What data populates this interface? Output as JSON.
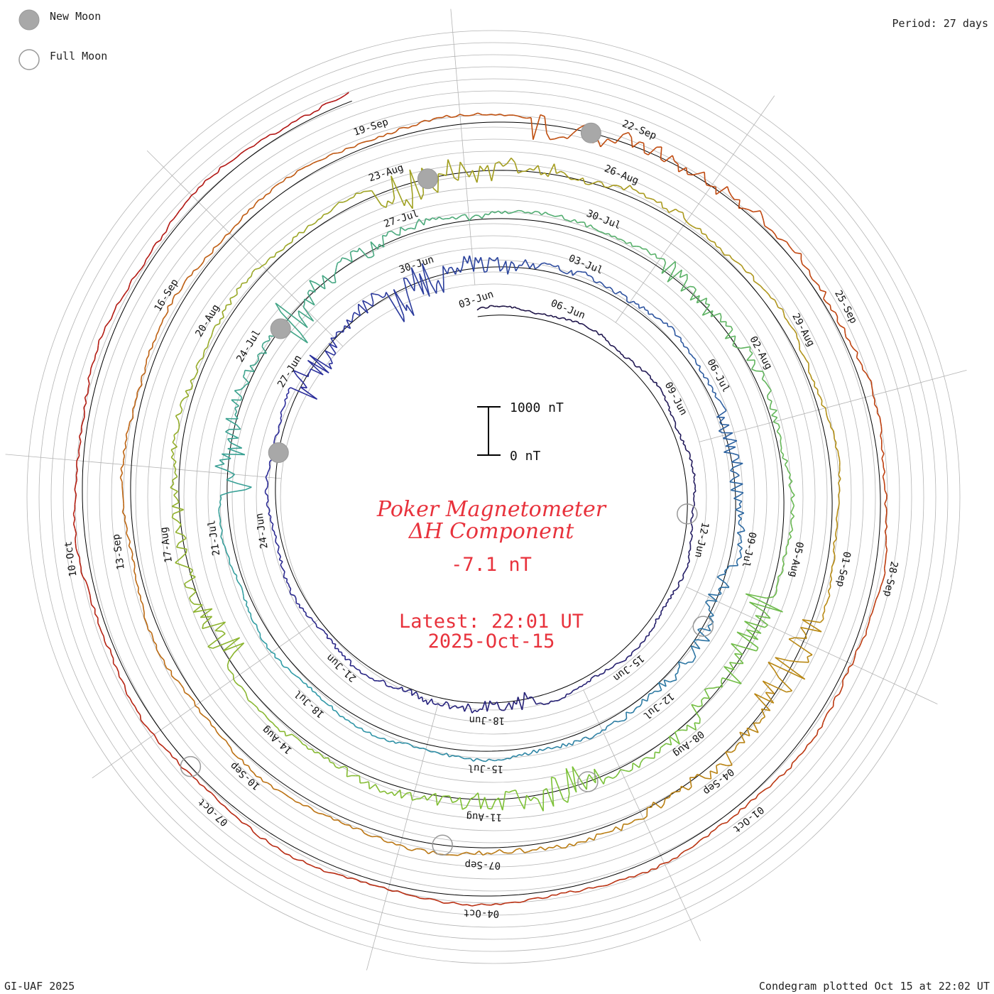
{
  "legend": {
    "new_moon": "New Moon",
    "full_moon": "Full Moon"
  },
  "period": "Period: 27 days",
  "footer": {
    "left": "GI-UAF 2025",
    "right": "Condegram plotted Oct 15 at 22:02 UT"
  },
  "scale_bar": {
    "top": "1000 nT",
    "bottom": "0 nT"
  },
  "center": {
    "title_line1": "Poker Magnetometer",
    "title_line2": "ΔH Component",
    "value": "-7.1 nT",
    "latest": "Latest: 22:01 UT",
    "date": "2025-Oct-15"
  },
  "colors": {
    "accent": "#e8323c",
    "grid": "#b4b4b4",
    "reference": "#000000",
    "moon_fill": "#a8a8a8",
    "moon_edge": "#999999"
  },
  "chart_data": {
    "type": "condegram-spiral",
    "title": "Poker Magnetometer ΔH Component",
    "units": "nT",
    "period_days": 27,
    "latest_value": -7.1,
    "start_date": "2025-06-04",
    "end_date": "2025-10-15",
    "turns": [
      {
        "name": "turn-1",
        "color": "#1a0f40",
        "date_labels": [
          "03-Jun",
          "06-Jun",
          "09-Jun",
          "12-Jun",
          "15-Jun",
          "18-Jun",
          "21-Jun",
          "24-Jun",
          "27-Jun"
        ]
      },
      {
        "name": "turn-2",
        "color": "#2a2a9a",
        "date_labels": [
          "30-Jun",
          "03-Jul",
          "06-Jul",
          "09-Jul",
          "12-Jul",
          "15-Jul",
          "18-Jul",
          "21-Jul",
          "24-Jul"
        ]
      },
      {
        "name": "turn-3",
        "color": "#2c9aa6",
        "date_labels": [
          "27-Jul",
          "30-Jul",
          "02-Aug",
          "05-Aug",
          "08-Aug",
          "11-Aug",
          "14-Aug",
          "17-Aug",
          "20-Aug"
        ]
      },
      {
        "name": "turn-4",
        "color": "#7cc236",
        "date_labels": [
          "23-Aug",
          "26-Aug",
          "29-Aug",
          "01-Sep",
          "04-Sep",
          "07-Sep",
          "10-Sep",
          "13-Sep",
          "16-Sep"
        ]
      },
      {
        "name": "turn-5",
        "color": "#b88a12",
        "date_labels": [
          "19-Sep",
          "22-Sep",
          "25-Sep",
          "28-Sep",
          "01-Oct",
          "04-Oct",
          "07-Oct",
          "10-Oct"
        ]
      }
    ],
    "new_moons": [
      "2025-06-25",
      "2025-07-24",
      "2025-08-23",
      "2025-09-21"
    ],
    "full_moons": [
      "2025-06-11",
      "2025-07-10",
      "2025-08-09",
      "2025-09-07",
      "2025-10-07"
    ]
  }
}
